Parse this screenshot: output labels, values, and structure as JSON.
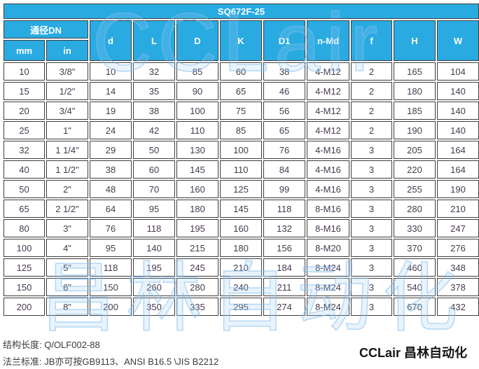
{
  "title": "SQ672F-25",
  "table": {
    "group_header": "通径DN",
    "columns": [
      "mm",
      "in",
      "d",
      "L",
      "D",
      "K",
      "D1",
      "n-Md",
      "f",
      "H",
      "W"
    ],
    "rows": [
      [
        "10",
        "3/8\"",
        "10",
        "32",
        "85",
        "60",
        "38",
        "4-M12",
        "2",
        "165",
        "104"
      ],
      [
        "15",
        "1/2\"",
        "14",
        "35",
        "90",
        "65",
        "46",
        "4-M12",
        "2",
        "180",
        "140"
      ],
      [
        "20",
        "3/4\"",
        "19",
        "38",
        "100",
        "75",
        "56",
        "4-M12",
        "2",
        "185",
        "140"
      ],
      [
        "25",
        "1\"",
        "24",
        "42",
        "110",
        "85",
        "65",
        "4-M12",
        "2",
        "190",
        "140"
      ],
      [
        "32",
        "1 1/4\"",
        "29",
        "50",
        "130",
        "100",
        "76",
        "4-M16",
        "3",
        "205",
        "164"
      ],
      [
        "40",
        "1 1/2\"",
        "38",
        "60",
        "145",
        "110",
        "84",
        "4-M16",
        "3",
        "220",
        "164"
      ],
      [
        "50",
        "2\"",
        "48",
        "70",
        "160",
        "125",
        "99",
        "4-M16",
        "3",
        "255",
        "190"
      ],
      [
        "65",
        "2 1/2\"",
        "64",
        "95",
        "180",
        "145",
        "118",
        "8-M16",
        "3",
        "280",
        "210"
      ],
      [
        "80",
        "3\"",
        "76",
        "118",
        "195",
        "160",
        "132",
        "8-M16",
        "3",
        "330",
        "247"
      ],
      [
        "100",
        "4\"",
        "95",
        "140",
        "215",
        "180",
        "156",
        "8-M20",
        "3",
        "370",
        "276"
      ],
      [
        "125",
        "5\"",
        "118",
        "195",
        "245",
        "210",
        "184",
        "8-M24",
        "3",
        "460",
        "348"
      ],
      [
        "150",
        "6\"",
        "150",
        "260",
        "280",
        "240",
        "211",
        "8-M24",
        "3",
        "540",
        "378"
      ],
      [
        "200",
        "8\"",
        "200",
        "350",
        "335",
        "295",
        "274",
        "8-M24",
        "3",
        "670",
        "432"
      ]
    ]
  },
  "footer": {
    "structure_length": "结构长度: Q/OLF002-88",
    "flange_standard": "法兰标准: JB亦可按GB9113、ANSI B16.5 \\JIS B2212",
    "brand": "CCLair 昌林自动化"
  },
  "watermarks": {
    "logo": "CCLair",
    "cn": "昌林自动化"
  },
  "colors": {
    "header_bg": "#29ABE2",
    "header_text": "#ffffff",
    "border": "#3d3d3d",
    "cell_text": "#463a4e",
    "watermark": "#8cc0ec"
  }
}
